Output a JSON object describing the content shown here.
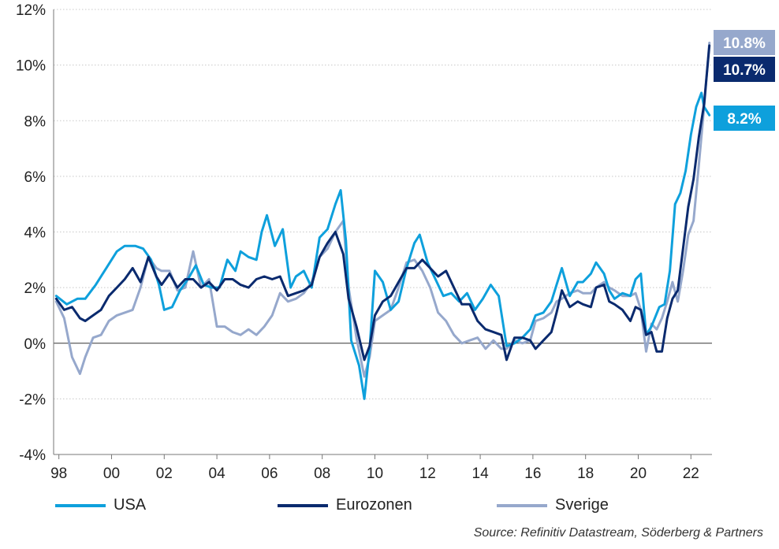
{
  "chart_data": {
    "type": "line",
    "title": "",
    "xlabel": "",
    "ylabel": "",
    "xlim": [
      1997.8,
      2022.8
    ],
    "ylim": [
      -4,
      12
    ],
    "y_ticks": [
      -4,
      -2,
      0,
      2,
      4,
      6,
      8,
      10,
      12
    ],
    "y_tick_labels": [
      "-4%",
      "-2%",
      "0%",
      "2%",
      "4%",
      "6%",
      "8%",
      "10%",
      "12%"
    ],
    "x_ticks": [
      1998,
      2000,
      2002,
      2004,
      2006,
      2008,
      2010,
      2012,
      2014,
      2016,
      2018,
      2020,
      2022
    ],
    "x_tick_labels": [
      "98",
      "00",
      "02",
      "04",
      "06",
      "08",
      "10",
      "12",
      "14",
      "16",
      "18",
      "20",
      "22"
    ],
    "grid": "horizontal dotted",
    "legend_position": "bottom",
    "series": [
      {
        "name": "USA",
        "color": "#0ea0dc",
        "end_label": "8.2%",
        "points": [
          [
            1997.9,
            1.7
          ],
          [
            1998.3,
            1.4
          ],
          [
            1998.7,
            1.6
          ],
          [
            1999.0,
            1.6
          ],
          [
            1999.4,
            2.1
          ],
          [
            1999.8,
            2.7
          ],
          [
            2000.2,
            3.3
          ],
          [
            2000.5,
            3.5
          ],
          [
            2000.9,
            3.5
          ],
          [
            2001.2,
            3.4
          ],
          [
            2001.5,
            3.0
          ],
          [
            2001.8,
            2.1
          ],
          [
            2002.0,
            1.2
          ],
          [
            2002.3,
            1.3
          ],
          [
            2002.6,
            1.9
          ],
          [
            2002.9,
            2.3
          ],
          [
            2003.2,
            2.8
          ],
          [
            2003.5,
            2.1
          ],
          [
            2003.8,
            2.0
          ],
          [
            2004.1,
            2.0
          ],
          [
            2004.4,
            3.0
          ],
          [
            2004.7,
            2.6
          ],
          [
            2004.9,
            3.3
          ],
          [
            2005.2,
            3.1
          ],
          [
            2005.5,
            3.0
          ],
          [
            2005.7,
            4.0
          ],
          [
            2005.9,
            4.6
          ],
          [
            2006.2,
            3.5
          ],
          [
            2006.5,
            4.1
          ],
          [
            2006.8,
            2.0
          ],
          [
            2007.0,
            2.4
          ],
          [
            2007.3,
            2.6
          ],
          [
            2007.6,
            2.0
          ],
          [
            2007.9,
            3.8
          ],
          [
            2008.2,
            4.1
          ],
          [
            2008.5,
            5.0
          ],
          [
            2008.7,
            5.5
          ],
          [
            2008.9,
            3.7
          ],
          [
            2009.1,
            0.1
          ],
          [
            2009.4,
            -0.8
          ],
          [
            2009.6,
            -2.0
          ],
          [
            2009.8,
            -0.2
          ],
          [
            2010.0,
            2.6
          ],
          [
            2010.3,
            2.2
          ],
          [
            2010.6,
            1.2
          ],
          [
            2010.9,
            1.5
          ],
          [
            2011.2,
            2.7
          ],
          [
            2011.5,
            3.6
          ],
          [
            2011.7,
            3.9
          ],
          [
            2012.0,
            2.9
          ],
          [
            2012.3,
            2.3
          ],
          [
            2012.6,
            1.7
          ],
          [
            2012.9,
            1.8
          ],
          [
            2013.2,
            1.5
          ],
          [
            2013.5,
            1.8
          ],
          [
            2013.8,
            1.2
          ],
          [
            2014.1,
            1.6
          ],
          [
            2014.4,
            2.1
          ],
          [
            2014.7,
            1.7
          ],
          [
            2015.0,
            -0.1
          ],
          [
            2015.3,
            0.0
          ],
          [
            2015.6,
            0.2
          ],
          [
            2015.9,
            0.5
          ],
          [
            2016.1,
            1.0
          ],
          [
            2016.4,
            1.1
          ],
          [
            2016.7,
            1.5
          ],
          [
            2016.9,
            2.1
          ],
          [
            2017.1,
            2.7
          ],
          [
            2017.4,
            1.7
          ],
          [
            2017.7,
            2.2
          ],
          [
            2017.9,
            2.2
          ],
          [
            2018.2,
            2.5
          ],
          [
            2018.4,
            2.9
          ],
          [
            2018.7,
            2.5
          ],
          [
            2018.9,
            1.9
          ],
          [
            2019.1,
            1.6
          ],
          [
            2019.4,
            1.8
          ],
          [
            2019.7,
            1.7
          ],
          [
            2019.9,
            2.3
          ],
          [
            2020.1,
            2.5
          ],
          [
            2020.3,
            0.3
          ],
          [
            2020.5,
            0.6
          ],
          [
            2020.8,
            1.3
          ],
          [
            2021.0,
            1.4
          ],
          [
            2021.2,
            2.6
          ],
          [
            2021.4,
            5.0
          ],
          [
            2021.6,
            5.4
          ],
          [
            2021.8,
            6.2
          ],
          [
            2022.0,
            7.5
          ],
          [
            2022.2,
            8.5
          ],
          [
            2022.4,
            9.0
          ],
          [
            2022.5,
            8.5
          ],
          [
            2022.7,
            8.2
          ]
        ]
      },
      {
        "name": "Eurozonen",
        "color": "#0a2a6e",
        "end_label": "10.7%",
        "points": [
          [
            1997.9,
            1.6
          ],
          [
            1998.2,
            1.2
          ],
          [
            1998.5,
            1.3
          ],
          [
            1998.8,
            0.9
          ],
          [
            1999.0,
            0.8
          ],
          [
            1999.3,
            1.0
          ],
          [
            1999.6,
            1.2
          ],
          [
            1999.9,
            1.7
          ],
          [
            2000.2,
            2.0
          ],
          [
            2000.5,
            2.3
          ],
          [
            2000.8,
            2.7
          ],
          [
            2001.1,
            2.2
          ],
          [
            2001.4,
            3.1
          ],
          [
            2001.7,
            2.4
          ],
          [
            2001.9,
            2.1
          ],
          [
            2002.2,
            2.5
          ],
          [
            2002.5,
            2.0
          ],
          [
            2002.8,
            2.3
          ],
          [
            2003.1,
            2.3
          ],
          [
            2003.4,
            2.0
          ],
          [
            2003.7,
            2.2
          ],
          [
            2004.0,
            1.9
          ],
          [
            2004.3,
            2.3
          ],
          [
            2004.6,
            2.3
          ],
          [
            2004.9,
            2.1
          ],
          [
            2005.2,
            2.0
          ],
          [
            2005.5,
            2.3
          ],
          [
            2005.8,
            2.4
          ],
          [
            2006.1,
            2.3
          ],
          [
            2006.4,
            2.4
          ],
          [
            2006.7,
            1.7
          ],
          [
            2007.0,
            1.8
          ],
          [
            2007.3,
            1.9
          ],
          [
            2007.6,
            2.1
          ],
          [
            2007.9,
            3.1
          ],
          [
            2008.2,
            3.6
          ],
          [
            2008.5,
            4.0
          ],
          [
            2008.8,
            3.2
          ],
          [
            2009.0,
            1.6
          ],
          [
            2009.3,
            0.6
          ],
          [
            2009.6,
            -0.6
          ],
          [
            2009.8,
            -0.1
          ],
          [
            2010.0,
            1.0
          ],
          [
            2010.3,
            1.5
          ],
          [
            2010.6,
            1.7
          ],
          [
            2010.9,
            2.2
          ],
          [
            2011.2,
            2.7
          ],
          [
            2011.5,
            2.7
          ],
          [
            2011.8,
            3.0
          ],
          [
            2012.1,
            2.7
          ],
          [
            2012.4,
            2.4
          ],
          [
            2012.7,
            2.6
          ],
          [
            2013.0,
            2.0
          ],
          [
            2013.3,
            1.4
          ],
          [
            2013.6,
            1.4
          ],
          [
            2013.9,
            0.8
          ],
          [
            2014.2,
            0.5
          ],
          [
            2014.5,
            0.4
          ],
          [
            2014.8,
            0.3
          ],
          [
            2015.0,
            -0.6
          ],
          [
            2015.3,
            0.2
          ],
          [
            2015.6,
            0.2
          ],
          [
            2015.9,
            0.1
          ],
          [
            2016.1,
            -0.2
          ],
          [
            2016.4,
            0.1
          ],
          [
            2016.7,
            0.4
          ],
          [
            2016.9,
            1.1
          ],
          [
            2017.1,
            1.9
          ],
          [
            2017.4,
            1.3
          ],
          [
            2017.7,
            1.5
          ],
          [
            2017.9,
            1.4
          ],
          [
            2018.2,
            1.3
          ],
          [
            2018.4,
            2.0
          ],
          [
            2018.7,
            2.1
          ],
          [
            2018.9,
            1.5
          ],
          [
            2019.1,
            1.4
          ],
          [
            2019.4,
            1.2
          ],
          [
            2019.7,
            0.8
          ],
          [
            2019.9,
            1.3
          ],
          [
            2020.1,
            1.2
          ],
          [
            2020.3,
            0.3
          ],
          [
            2020.5,
            0.4
          ],
          [
            2020.7,
            -0.3
          ],
          [
            2020.9,
            -0.3
          ],
          [
            2021.1,
            0.9
          ],
          [
            2021.3,
            1.6
          ],
          [
            2021.5,
            1.9
          ],
          [
            2021.7,
            3.4
          ],
          [
            2021.9,
            4.9
          ],
          [
            2022.1,
            5.9
          ],
          [
            2022.3,
            7.4
          ],
          [
            2022.5,
            8.6
          ],
          [
            2022.7,
            10.7
          ]
        ]
      },
      {
        "name": "Sverige",
        "color": "#96a8cc",
        "end_label": "10.8%",
        "points": [
          [
            1997.9,
            1.5
          ],
          [
            1998.2,
            0.9
          ],
          [
            1998.5,
            -0.5
          ],
          [
            1998.8,
            -1.1
          ],
          [
            1999.0,
            -0.5
          ],
          [
            1999.3,
            0.2
          ],
          [
            1999.6,
            0.3
          ],
          [
            1999.9,
            0.8
          ],
          [
            2000.2,
            1.0
          ],
          [
            2000.5,
            1.1
          ],
          [
            2000.8,
            1.2
          ],
          [
            2001.1,
            2.0
          ],
          [
            2001.4,
            3.1
          ],
          [
            2001.7,
            2.7
          ],
          [
            2001.9,
            2.6
          ],
          [
            2002.2,
            2.6
          ],
          [
            2002.5,
            1.9
          ],
          [
            2002.8,
            2.0
          ],
          [
            2003.1,
            3.3
          ],
          [
            2003.4,
            2.0
          ],
          [
            2003.7,
            2.3
          ],
          [
            2004.0,
            0.6
          ],
          [
            2004.3,
            0.6
          ],
          [
            2004.6,
            0.4
          ],
          [
            2004.9,
            0.3
          ],
          [
            2005.2,
            0.5
          ],
          [
            2005.5,
            0.3
          ],
          [
            2005.8,
            0.6
          ],
          [
            2006.1,
            1.0
          ],
          [
            2006.4,
            1.8
          ],
          [
            2006.7,
            1.5
          ],
          [
            2007.0,
            1.6
          ],
          [
            2007.3,
            1.8
          ],
          [
            2007.6,
            2.2
          ],
          [
            2007.9,
            3.1
          ],
          [
            2008.2,
            3.4
          ],
          [
            2008.5,
            4.0
          ],
          [
            2008.8,
            4.4
          ],
          [
            2009.0,
            2.0
          ],
          [
            2009.3,
            0.2
          ],
          [
            2009.6,
            -1.2
          ],
          [
            2009.8,
            -0.5
          ],
          [
            2010.0,
            0.8
          ],
          [
            2010.3,
            1.0
          ],
          [
            2010.6,
            1.2
          ],
          [
            2010.9,
            2.0
          ],
          [
            2011.2,
            2.9
          ],
          [
            2011.5,
            3.0
          ],
          [
            2011.8,
            2.6
          ],
          [
            2012.1,
            2.0
          ],
          [
            2012.4,
            1.1
          ],
          [
            2012.7,
            0.8
          ],
          [
            2013.0,
            0.3
          ],
          [
            2013.3,
            0.0
          ],
          [
            2013.6,
            0.1
          ],
          [
            2013.9,
            0.2
          ],
          [
            2014.2,
            -0.2
          ],
          [
            2014.5,
            0.1
          ],
          [
            2014.8,
            -0.2
          ],
          [
            2015.0,
            -0.2
          ],
          [
            2015.3,
            0.1
          ],
          [
            2015.6,
            0.0
          ],
          [
            2015.9,
            0.1
          ],
          [
            2016.1,
            0.8
          ],
          [
            2016.4,
            0.9
          ],
          [
            2016.7,
            1.1
          ],
          [
            2016.9,
            1.5
          ],
          [
            2017.1,
            1.6
          ],
          [
            2017.4,
            1.8
          ],
          [
            2017.7,
            1.9
          ],
          [
            2017.9,
            1.8
          ],
          [
            2018.2,
            1.8
          ],
          [
            2018.4,
            2.0
          ],
          [
            2018.7,
            2.2
          ],
          [
            2018.9,
            2.0
          ],
          [
            2019.1,
            1.9
          ],
          [
            2019.4,
            1.7
          ],
          [
            2019.7,
            1.7
          ],
          [
            2019.9,
            1.8
          ],
          [
            2020.1,
            1.2
          ],
          [
            2020.3,
            -0.3
          ],
          [
            2020.5,
            0.7
          ],
          [
            2020.7,
            0.5
          ],
          [
            2020.9,
            0.9
          ],
          [
            2021.1,
            1.5
          ],
          [
            2021.3,
            2.2
          ],
          [
            2021.5,
            1.5
          ],
          [
            2021.7,
            2.6
          ],
          [
            2021.9,
            3.9
          ],
          [
            2022.1,
            4.4
          ],
          [
            2022.3,
            6.4
          ],
          [
            2022.5,
            8.5
          ],
          [
            2022.7,
            10.8
          ]
        ]
      }
    ]
  },
  "source": "Source: Refinitiv Datastream, Söderberg & Partners"
}
